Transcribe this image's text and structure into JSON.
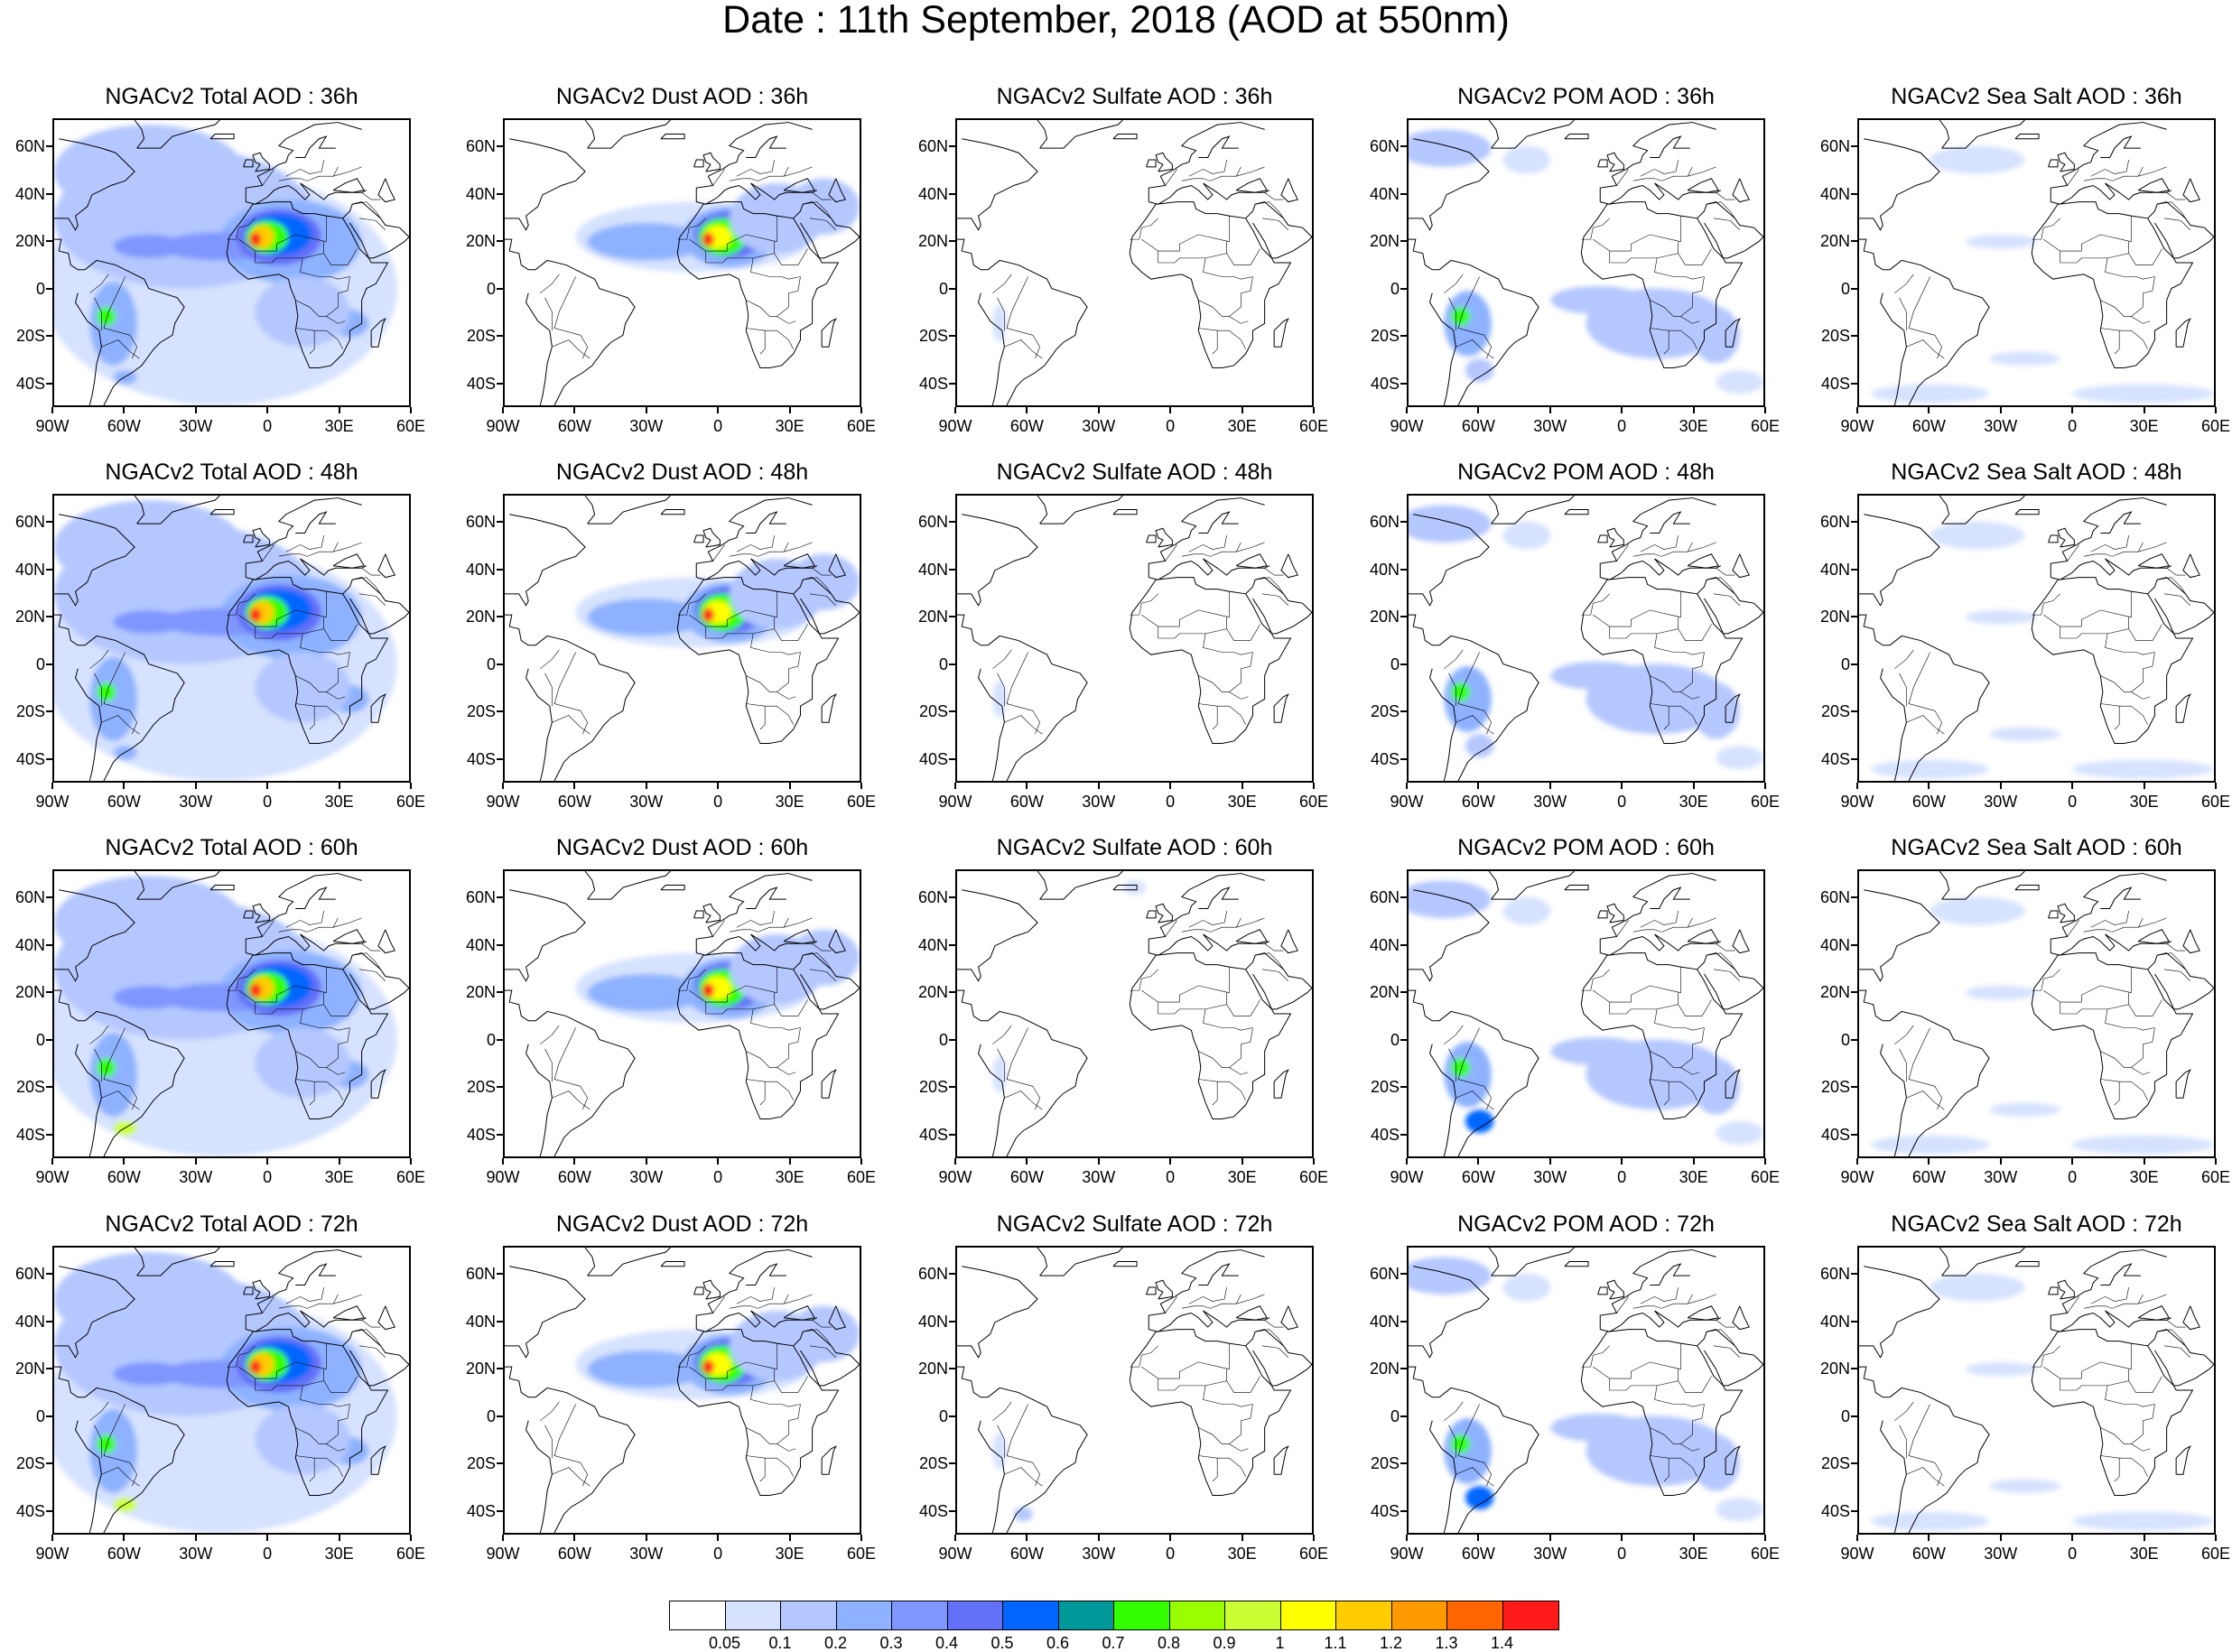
{
  "title": "Date : 11th September, 2018 (AOD at 550nm)",
  "panels": [
    [
      "NGACv2 Total AOD : 36h",
      "NGACv2 Dust AOD : 36h",
      "NGACv2 Sulfate AOD : 36h",
      "NGACv2 POM AOD : 36h",
      "NGACv2 Sea Salt AOD : 36h"
    ],
    [
      "NGACv2 Total AOD : 48h",
      "NGACv2 Dust AOD : 48h",
      "NGACv2 Sulfate AOD : 48h",
      "NGACv2 POM AOD : 48h",
      "NGACv2 Sea Salt AOD : 48h"
    ],
    [
      "NGACv2 Total AOD : 60h",
      "NGACv2 Dust AOD : 60h",
      "NGACv2 Sulfate AOD : 60h",
      "NGACv2 POM AOD : 60h",
      "NGACv2 Sea Salt AOD : 60h"
    ],
    [
      "NGACv2 Total AOD : 72h",
      "NGACv2 Dust AOD : 72h",
      "NGACv2 Sulfate AOD : 72h",
      "NGACv2 POM AOD : 72h",
      "NGACv2 Sea Salt  AOD : 72h"
    ]
  ],
  "lat_ticks": [
    "60N",
    "40N",
    "20N",
    "0",
    "20S",
    "40S"
  ],
  "lon_ticks": [
    "90W",
    "60W",
    "30W",
    "0",
    "30E",
    "60E"
  ],
  "colorbar": {
    "labels": [
      "0.05",
      "0.1",
      "0.2",
      "0.3",
      "0.4",
      "0.5",
      "0.6",
      "0.7",
      "0.8",
      "0.9",
      "1",
      "1.1",
      "1.2",
      "1.3",
      "1.4"
    ],
    "colors": [
      "#ffffff",
      "#d6e2ff",
      "#b4c7ff",
      "#8eb2ff",
      "#7f96ff",
      "#6370f8",
      "#0066ff",
      "#009999",
      "#33ff00",
      "#99ff00",
      "#ccff33",
      "#ffff00",
      "#ffcc00",
      "#ff9900",
      "#ff6600",
      "#ff1a1a"
    ]
  }
}
